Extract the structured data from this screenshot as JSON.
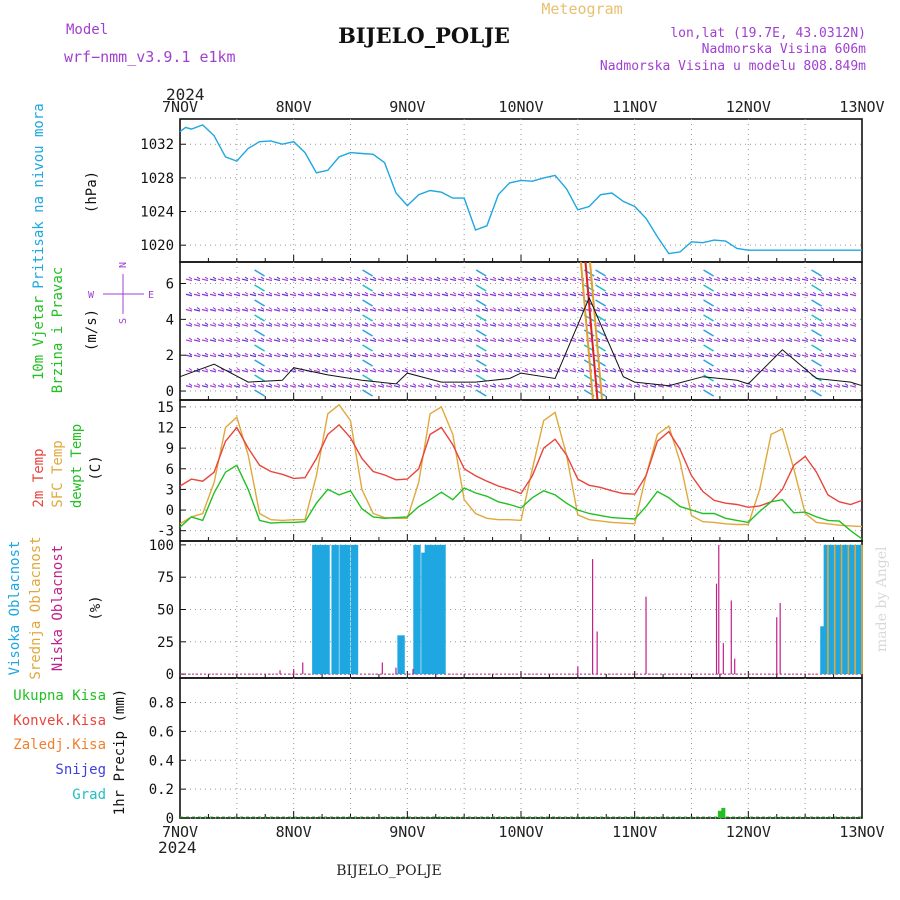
{
  "header": {
    "model_label": "Model",
    "model_name": "wrf−nmm_v3.9.1  e1km",
    "title": "BIJELO_POLJE",
    "meteogram": "Meteogram",
    "lonlat": "lon,lat (19.7E, 43.0312N)",
    "altitude": "Nadmorska Visina 606m",
    "model_altitude": "Nadmorska Visina u modelu 808.849m",
    "year_top": "2024",
    "year_bottom": "2024",
    "footer_title": "BIJELO_POLJE",
    "watermark": "made by Angel"
  },
  "colors": {
    "pressure": "#1ea7e1",
    "wind_label": "#22c022",
    "t2m": "#e8453c",
    "sfc": "#e0a83c",
    "dew": "#22c022",
    "high_cloud": "#1ea7e1",
    "mid_cloud": "#e0a83c",
    "low_cloud": "#c0208a",
    "purple": "#a040d0",
    "orange": "#f08030",
    "blue": "#4040e0",
    "cyan": "#20c0c0"
  },
  "chart_data": [
    {
      "type": "line",
      "title": "Pritisak na nivou mora",
      "ylabel": "(hPa)",
      "x_categories": [
        "7NOV",
        "8NOV",
        "9NOV",
        "10NOV",
        "11NOV",
        "12NOV",
        "13NOV"
      ],
      "ylim": [
        1018,
        1035
      ],
      "yticks": [
        1020,
        1024,
        1028,
        1032
      ],
      "grid": true,
      "series": [
        {
          "name": "Pritisak na nivou mora",
          "x": [
            0,
            0.05,
            0.1,
            0.2,
            0.3,
            0.4,
            0.5,
            0.6,
            0.7,
            0.8,
            0.9,
            1,
            1.1,
            1.2,
            1.3,
            1.4,
            1.5,
            1.6,
            1.7,
            1.8,
            1.9,
            2,
            2.1,
            2.2,
            2.3,
            2.4,
            2.5,
            2.6,
            2.7,
            2.8,
            2.9,
            3,
            3.1,
            3.2,
            3.3,
            3.4,
            3.5,
            3.6,
            3.7,
            3.8,
            3.9,
            4,
            4.1,
            4.2,
            4.3,
            4.4,
            4.5,
            4.6,
            4.7,
            4.8,
            4.9,
            5,
            5.1,
            5.2,
            5.3,
            5.4,
            5.5,
            5.6,
            5.7,
            5.8,
            5.9,
            6
          ],
          "values": [
            1033.5,
            1034,
            1033.8,
            1034.3,
            1033,
            1030.5,
            1030,
            1031.5,
            1032.3,
            1032.4,
            1032,
            1032.3,
            1031,
            1028.6,
            1028.9,
            1030.5,
            1031,
            1030.9,
            1030.8,
            1029.8,
            1026.2,
            1024.7,
            1026,
            1026.5,
            1026.3,
            1025.6,
            1025.6,
            1021.8,
            1022.3,
            1026,
            1027.4,
            1027.7,
            1027.6,
            1028,
            1028.3,
            1026.7,
            1024.2,
            1024.6,
            1026,
            1026.2,
            1025.2,
            1024.6,
            1023.2,
            1021,
            1019,
            1019.2,
            1020.4,
            1020.3,
            1020.6,
            1020.5,
            1019.6,
            1019.4,
            1019.4,
            1019.4,
            1019.4,
            1019.4,
            1019.4,
            1019.4,
            1019.4,
            1019.4,
            1019.4,
            1019.4
          ]
        }
      ]
    },
    {
      "type": "line",
      "title": "10m Vjetar Brzina i Pravac",
      "ylabel": "(m/s)",
      "compass": [
        "N",
        "E",
        "S",
        "W"
      ],
      "ylim": [
        -0.5,
        7.2
      ],
      "yticks": [
        0,
        2,
        4,
        6
      ],
      "grid": true,
      "series": [
        {
          "name": "10m Vjetar",
          "x": [
            0,
            0.3,
            0.6,
            0.9,
            1,
            1.3,
            1.6,
            1.9,
            2,
            2.3,
            2.6,
            2.9,
            3,
            3.3,
            3.6,
            3.9,
            4,
            4.3,
            4.6,
            4.9,
            5,
            5.3,
            5.6,
            5.9,
            6
          ],
          "values": [
            0.8,
            1.5,
            0.5,
            0.6,
            1.3,
            0.9,
            0.6,
            0.4,
            1.0,
            0.5,
            0.5,
            0.7,
            1.0,
            0.7,
            5.2,
            0.8,
            0.5,
            0.3,
            0.8,
            0.6,
            0.4,
            2.3,
            0.7,
            0.5,
            0.3
          ]
        }
      ]
    },
    {
      "type": "line",
      "title": "2m Temp / SFC Temp / dewpt Temp",
      "ylabel": "(C)",
      "ylim": [
        -4.5,
        16
      ],
      "yticks": [
        -3,
        0,
        3,
        6,
        9,
        12,
        15
      ],
      "grid": true,
      "series": [
        {
          "name": "2m Temp",
          "x": [
            0,
            0.1,
            0.2,
            0.3,
            0.4,
            0.5,
            0.6,
            0.7,
            0.8,
            0.9,
            1,
            1.1,
            1.2,
            1.3,
            1.4,
            1.5,
            1.6,
            1.7,
            1.8,
            1.9,
            2,
            2.1,
            2.2,
            2.3,
            2.4,
            2.5,
            2.6,
            2.7,
            2.8,
            2.9,
            3,
            3.1,
            3.2,
            3.3,
            3.4,
            3.5,
            3.6,
            3.7,
            3.8,
            3.9,
            4,
            4.1,
            4.2,
            4.3,
            4.4,
            4.5,
            4.6,
            4.7,
            4.8,
            4.9,
            5,
            5.1,
            5.2,
            5.3,
            5.4,
            5.5,
            5.6,
            5.7,
            5.8,
            5.9,
            6
          ],
          "values": [
            3.5,
            4.5,
            4.2,
            5.5,
            10,
            12,
            9,
            6.5,
            5.6,
            5.2,
            4.6,
            4.7,
            7.5,
            11,
            12.4,
            10.5,
            7.5,
            5.6,
            5.1,
            4.4,
            4.5,
            6,
            11,
            12,
            9.5,
            6,
            5,
            4.2,
            3.5,
            3,
            2.4,
            5,
            9,
            10.3,
            8,
            4.5,
            3.6,
            3.3,
            2.8,
            2.4,
            2.3,
            5,
            10,
            11.4,
            8.8,
            5,
            2.7,
            1.4,
            1,
            0.8,
            0.4,
            0.6,
            1.2,
            3,
            6.5,
            7.8,
            5.5,
            2.2,
            1.2,
            0.8,
            1.4
          ]
        },
        {
          "name": "SFC Temp",
          "x": [
            0,
            0.1,
            0.2,
            0.3,
            0.4,
            0.5,
            0.6,
            0.7,
            0.8,
            0.9,
            1,
            1.1,
            1.2,
            1.3,
            1.4,
            1.5,
            1.6,
            1.7,
            1.8,
            1.9,
            2,
            2.1,
            2.2,
            2.3,
            2.4,
            2.5,
            2.6,
            2.7,
            2.8,
            2.9,
            3,
            3.1,
            3.2,
            3.3,
            3.4,
            3.5,
            3.6,
            3.7,
            3.8,
            3.9,
            4,
            4.1,
            4.2,
            4.3,
            4.4,
            4.5,
            4.6,
            4.7,
            4.8,
            4.9,
            5,
            5.1,
            5.2,
            5.3,
            5.4,
            5.5,
            5.6,
            5.7,
            5.8,
            5.9,
            6
          ],
          "values": [
            -2,
            -1,
            -0.5,
            4,
            12,
            13.5,
            8,
            -0.5,
            -1.4,
            -1.5,
            -1.4,
            -1.4,
            5,
            14,
            15.3,
            13,
            3,
            -0.5,
            -1.1,
            -1.2,
            -1.2,
            4,
            14,
            15,
            11,
            1.5,
            -0.5,
            -1.2,
            -1.4,
            -1.4,
            -1.5,
            6,
            13,
            14.2,
            8,
            -0.7,
            -1.4,
            -1.6,
            -1.8,
            -1.9,
            -2,
            5,
            11,
            12.2,
            7,
            -0.8,
            -1.7,
            -1.8,
            -2,
            -2.1,
            -2.1,
            3,
            11,
            11.8,
            6,
            -0.5,
            -1.8,
            -2,
            -2.2,
            -2.3,
            -2.4
          ]
        },
        {
          "name": "dewpt Temp",
          "x": [
            0,
            0.1,
            0.2,
            0.3,
            0.4,
            0.5,
            0.6,
            0.7,
            0.8,
            0.9,
            1,
            1.1,
            1.2,
            1.3,
            1.4,
            1.5,
            1.6,
            1.7,
            1.8,
            1.9,
            2,
            2.1,
            2.2,
            2.3,
            2.4,
            2.5,
            2.6,
            2.7,
            2.8,
            2.9,
            3,
            3.1,
            3.2,
            3.3,
            3.4,
            3.5,
            3.6,
            3.7,
            3.8,
            3.9,
            4,
            4.1,
            4.2,
            4.3,
            4.4,
            4.5,
            4.6,
            4.7,
            4.8,
            4.9,
            5,
            5.1,
            5.2,
            5.3,
            5.4,
            5.5,
            5.6,
            5.7,
            5.8,
            5.9,
            6
          ],
          "values": [
            -2.5,
            -1,
            -1.5,
            2.5,
            5.5,
            6.5,
            3,
            -1.5,
            -1.9,
            -1.8,
            -1.8,
            -1.7,
            1,
            3,
            2.2,
            2.8,
            0.2,
            -1,
            -1.2,
            -1.1,
            -1,
            0.5,
            1.5,
            2.6,
            1.5,
            3.2,
            2.5,
            2,
            1.2,
            0.8,
            0.3,
            1.8,
            2.8,
            2.2,
            1,
            0,
            -0.5,
            -0.8,
            -1.1,
            -1.2,
            -1.3,
            0.5,
            2.7,
            1.8,
            0.5,
            0,
            -0.5,
            -0.5,
            -1.2,
            -1.5,
            -1.8,
            -0.2,
            1.2,
            1.5,
            -0.4,
            -0.3,
            -1,
            -1.5,
            -1.6,
            -3,
            -4.2
          ]
        }
      ]
    },
    {
      "type": "bar",
      "title": "Visoka Oblacnost / Srednja Oblacnost / Niska Oblacnost",
      "ylabel": "(%)",
      "ylim": [
        -3,
        103
      ],
      "yticks": [
        0,
        25,
        50,
        75,
        100
      ],
      "grid": true,
      "series": [
        {
          "name": "Visoka Oblacnost",
          "x": [
            1.18,
            1.21,
            1.24,
            1.27,
            1.3,
            1.35,
            1.38,
            1.42,
            1.45,
            1.48,
            1.52,
            1.55,
            1.93,
            1.96,
            2.07,
            2.1,
            2.14,
            2.17,
            2.2,
            2.23,
            2.26,
            2.29,
            2.32,
            5.65,
            5.68,
            5.71,
            5.74,
            5.77,
            5.8,
            5.83,
            5.86,
            5.89,
            5.92,
            5.95,
            5.98
          ],
          "values": [
            100,
            100,
            100,
            100,
            100,
            100,
            100,
            100,
            100,
            100,
            100,
            100,
            30,
            30,
            100,
            100,
            94,
            100,
            100,
            100,
            100,
            100,
            100,
            37,
            100,
            100,
            100,
            100,
            100,
            100,
            100,
            100,
            100,
            100,
            100
          ]
        },
        {
          "name": "Srednja Oblacnost",
          "x": [
            5.7,
            5.76,
            5.82,
            5.88,
            5.94,
            6.0
          ],
          "values": [
            100,
            100,
            100,
            100,
            100,
            100
          ]
        },
        {
          "name": "Niska Oblacnost",
          "x": [
            0.88,
            1.0,
            1.08,
            1.78,
            1.9,
            2.05,
            3.5,
            3.63,
            3.67,
            4.1,
            4.72,
            4.74,
            4.78,
            4.85,
            4.88,
            5.25,
            5.28
          ],
          "values": [
            3,
            4,
            9,
            9,
            5,
            4,
            6,
            89,
            33,
            60,
            70,
            100,
            24,
            57,
            12,
            44,
            55
          ]
        }
      ]
    },
    {
      "type": "bar",
      "title": "Ukupna Kisa / Konvek.Kisa / Zaledj.Kisa / Snijeg / Grad",
      "ylabel": "1hr Precip (mm)",
      "ylim": [
        0,
        0.97
      ],
      "yticks": [
        0,
        0.2,
        0.4,
        0.6,
        0.8
      ],
      "legend": [
        "Ukupna Kisa",
        "Konvek.Kisa",
        "Zaledj.Kisa",
        "Snijeg",
        "Grad"
      ],
      "grid": true,
      "series": [
        {
          "name": "Ukupna Kisa",
          "x": [
            4.75,
            4.78
          ],
          "values": [
            0.05,
            0.07
          ]
        }
      ]
    }
  ]
}
